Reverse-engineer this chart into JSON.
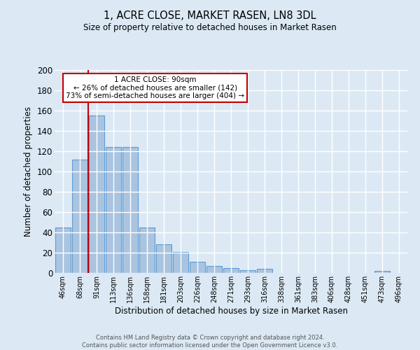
{
  "title": "1, ACRE CLOSE, MARKET RASEN, LN8 3DL",
  "subtitle": "Size of property relative to detached houses in Market Rasen",
  "xlabel": "Distribution of detached houses by size in Market Rasen",
  "ylabel": "Number of detached properties",
  "footer_line1": "Contains HM Land Registry data © Crown copyright and database right 2024.",
  "footer_line2": "Contains public sector information licensed under the Open Government Licence v3.0.",
  "categories": [
    "46sqm",
    "68sqm",
    "91sqm",
    "113sqm",
    "136sqm",
    "158sqm",
    "181sqm",
    "203sqm",
    "226sqm",
    "248sqm",
    "271sqm",
    "293sqm",
    "316sqm",
    "338sqm",
    "361sqm",
    "383sqm",
    "406sqm",
    "428sqm",
    "451sqm",
    "473sqm",
    "496sqm"
  ],
  "values": [
    45,
    112,
    155,
    124,
    124,
    45,
    28,
    21,
    11,
    7,
    5,
    3,
    4,
    0,
    0,
    0,
    0,
    0,
    0,
    2,
    0
  ],
  "bar_color": "#aac4e0",
  "bar_edge_color": "#5b9bd5",
  "bg_color": "#dce9f5",
  "grid_color": "#ffffff",
  "ref_line_color": "#c00000",
  "annotation_box_color": "#ffffff",
  "annotation_box_edge_color": "#c00000",
  "ylim": [
    0,
    200
  ],
  "yticks": [
    0,
    20,
    40,
    60,
    80,
    100,
    120,
    140,
    160,
    180,
    200
  ]
}
